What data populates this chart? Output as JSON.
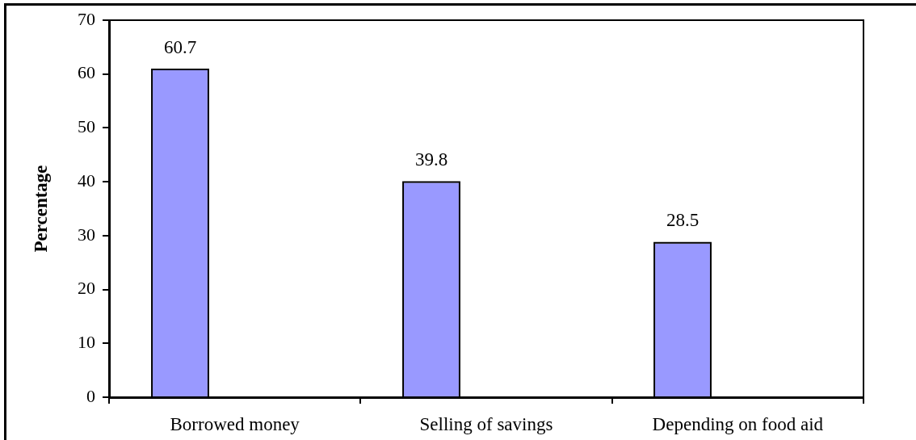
{
  "chart_data": {
    "type": "bar",
    "ylabel": "Percentage",
    "categories": [
      "Borrowed money",
      "Selling of savings",
      "Depending on food aid"
    ],
    "values": [
      60.7,
      39.8,
      28.5
    ],
    "color": "#9999ff",
    "ylim": [
      0,
      70
    ],
    "yticks": [
      0,
      10,
      20,
      30,
      40,
      50,
      60,
      70
    ],
    "data_labels": true
  }
}
